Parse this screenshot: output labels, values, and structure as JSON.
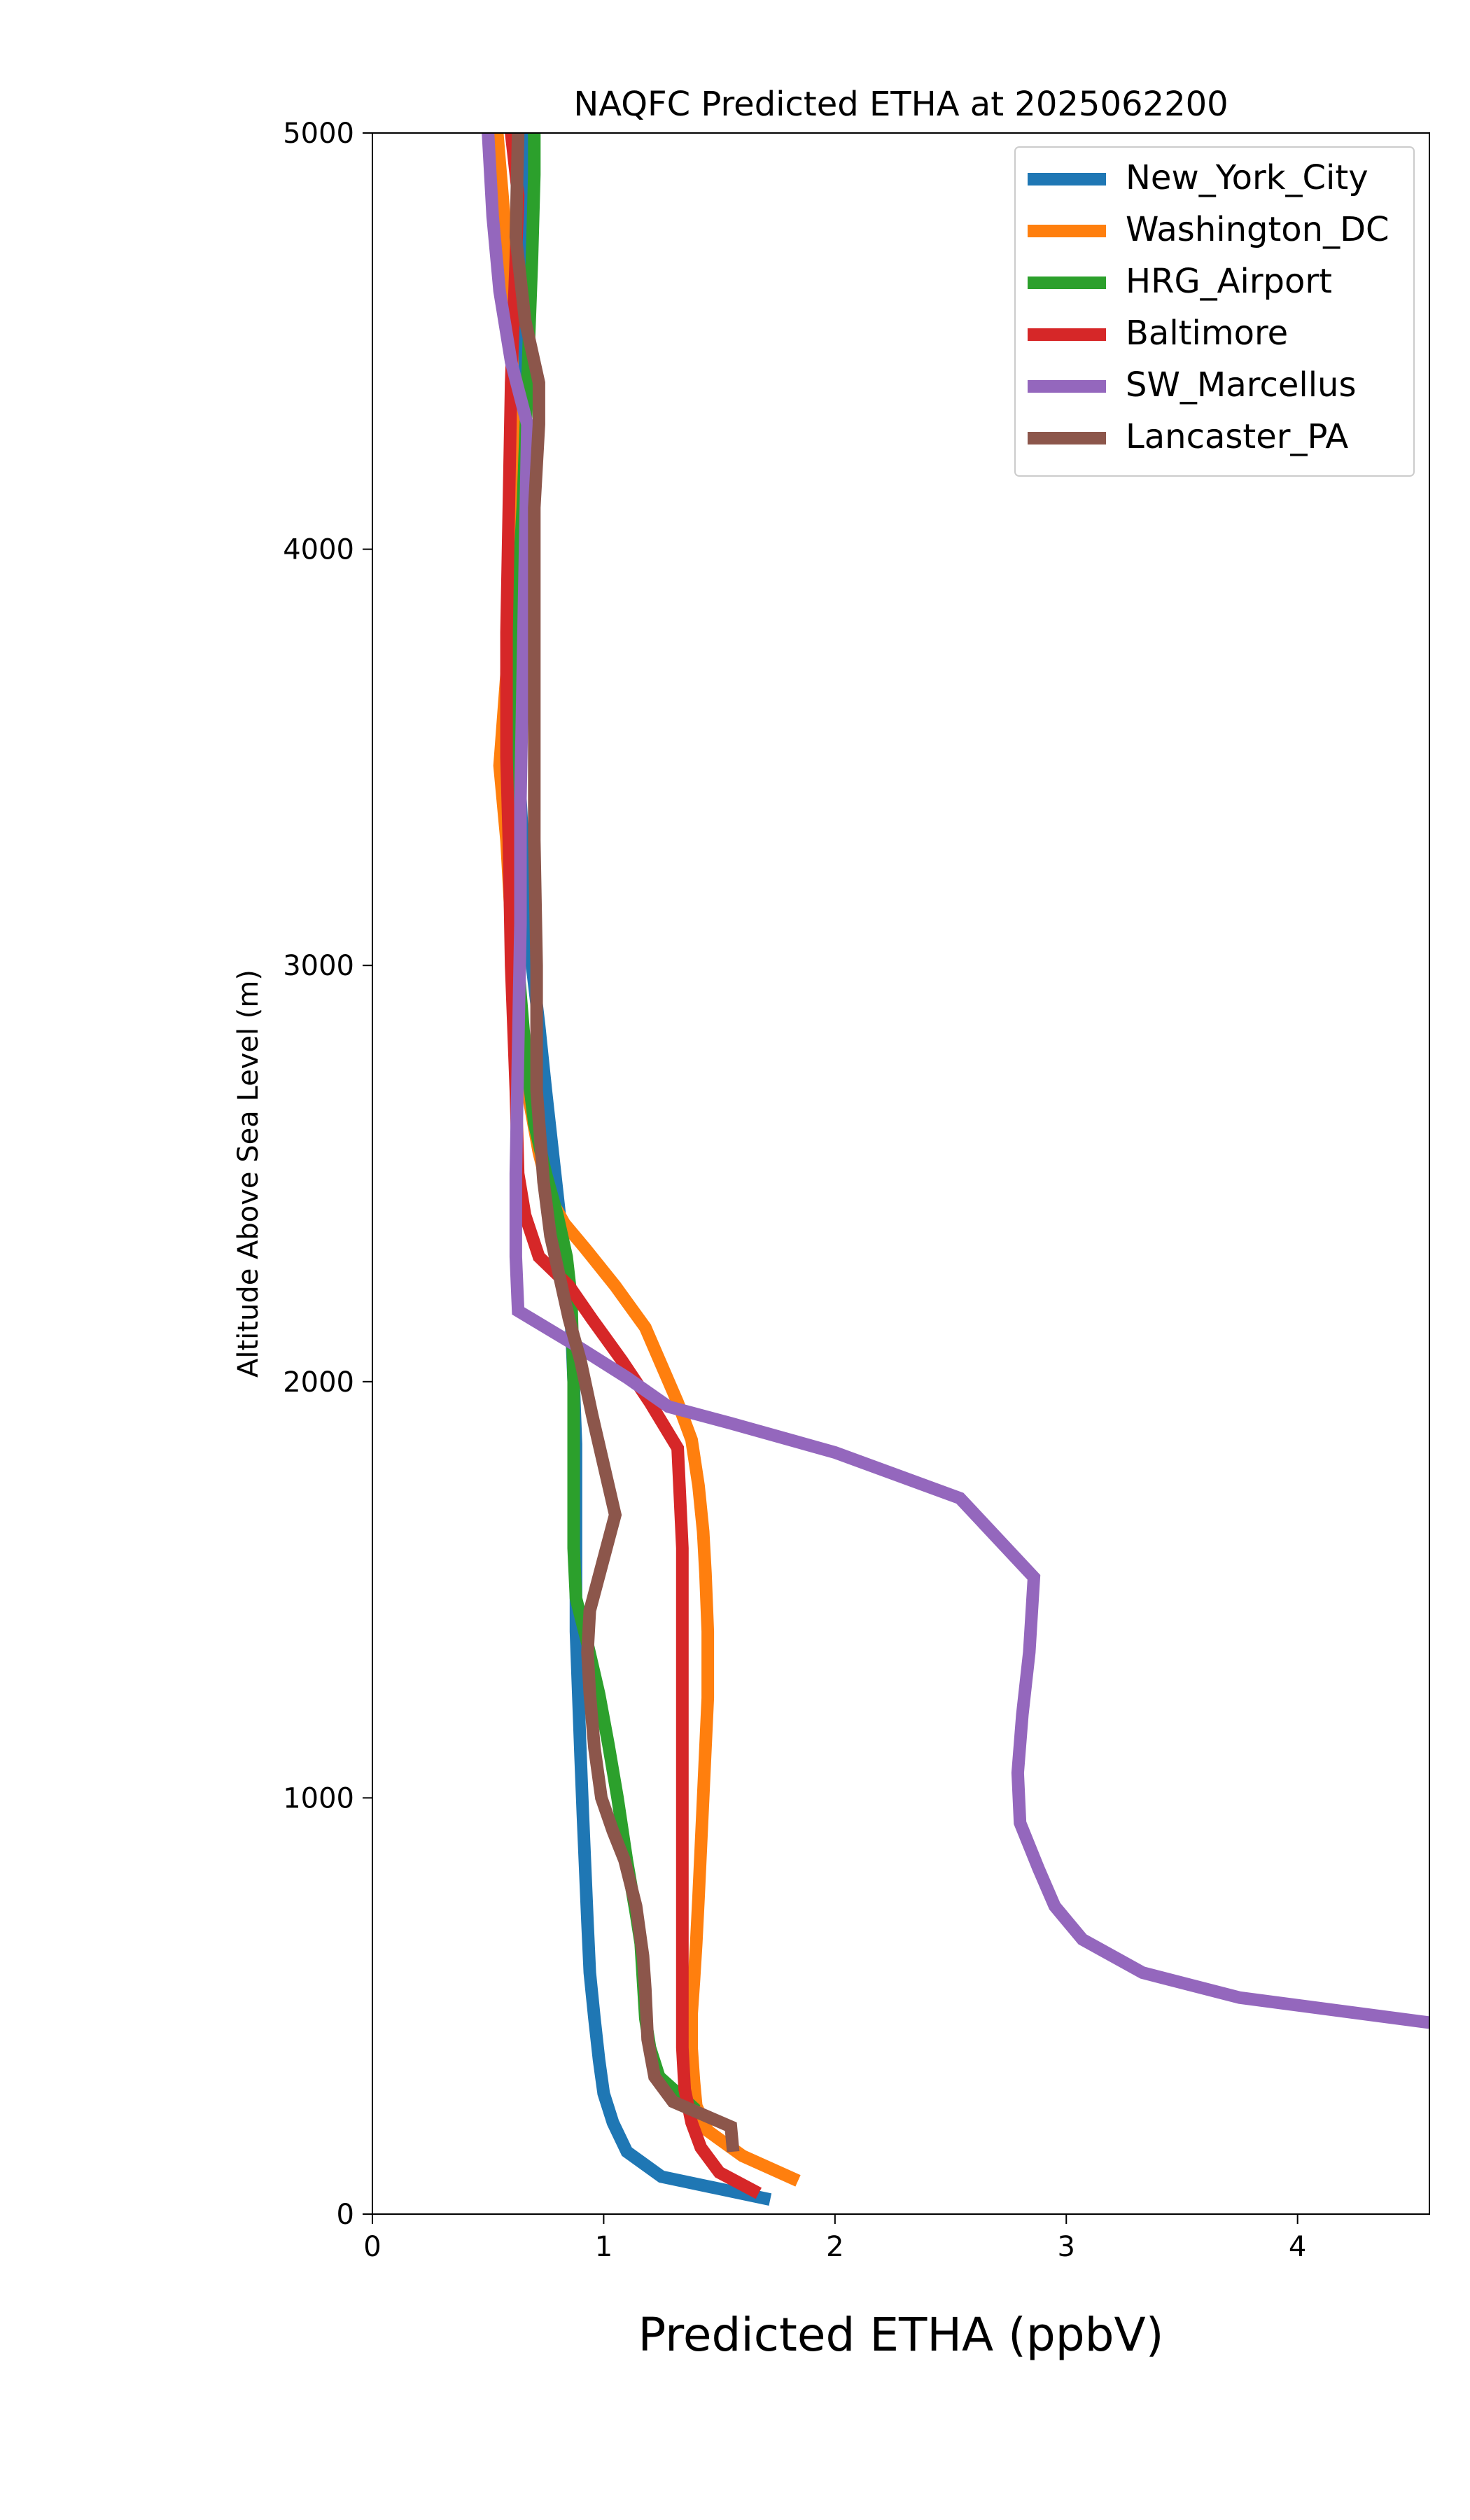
{
  "chart_data": {
    "type": "line",
    "title": "NAQFC Predicted ETHA at 2025062200",
    "xlabel": "Predicted ETHA (ppbV)",
    "ylabel": "Altitude Above Sea Level (m)",
    "xlim": [
      0,
      4.57
    ],
    "ylim": [
      0,
      5000
    ],
    "xticks": [
      0,
      1,
      2,
      3,
      4
    ],
    "yticks": [
      0,
      1000,
      2000,
      3000,
      4000,
      5000
    ],
    "grid": false,
    "legend": "top-right",
    "series": [
      {
        "name": "New_York_City",
        "color": "#1f77b4",
        "points": [
          [
            1.72,
            35
          ],
          [
            1.25,
            90
          ],
          [
            1.1,
            150
          ],
          [
            1.04,
            220
          ],
          [
            1.0,
            290
          ],
          [
            0.98,
            370
          ],
          [
            0.96,
            470
          ],
          [
            0.94,
            580
          ],
          [
            0.93,
            700
          ],
          [
            0.92,
            830
          ],
          [
            0.91,
            960
          ],
          [
            0.9,
            1100
          ],
          [
            0.89,
            1250
          ],
          [
            0.88,
            1400
          ],
          [
            0.88,
            1550
          ],
          [
            0.88,
            1700
          ],
          [
            0.88,
            1850
          ],
          [
            0.87,
            2000
          ],
          [
            0.86,
            2130
          ],
          [
            0.84,
            2260
          ],
          [
            0.81,
            2400
          ],
          [
            0.78,
            2550
          ],
          [
            0.75,
            2700
          ],
          [
            0.72,
            2860
          ],
          [
            0.69,
            3000
          ],
          [
            0.66,
            3200
          ],
          [
            0.64,
            3400
          ],
          [
            0.62,
            3700
          ],
          [
            0.62,
            4000
          ],
          [
            0.63,
            4200
          ],
          [
            0.64,
            4400
          ],
          [
            0.65,
            4600
          ],
          [
            0.66,
            4800
          ],
          [
            0.66,
            5000
          ]
        ]
      },
      {
        "name": "Washington_DC",
        "color": "#ff7f0e",
        "points": [
          [
            1.84,
            80
          ],
          [
            1.6,
            140
          ],
          [
            1.45,
            200
          ],
          [
            1.4,
            260
          ],
          [
            1.39,
            320
          ],
          [
            1.38,
            400
          ],
          [
            1.38,
            480
          ],
          [
            1.39,
            560
          ],
          [
            1.4,
            650
          ],
          [
            1.41,
            760
          ],
          [
            1.42,
            880
          ],
          [
            1.43,
            1000
          ],
          [
            1.44,
            1120
          ],
          [
            1.45,
            1240
          ],
          [
            1.45,
            1400
          ],
          [
            1.44,
            1540
          ],
          [
            1.43,
            1640
          ],
          [
            1.41,
            1750
          ],
          [
            1.38,
            1860
          ],
          [
            1.32,
            1950
          ],
          [
            1.25,
            2040
          ],
          [
            1.18,
            2130
          ],
          [
            1.05,
            2230
          ],
          [
            0.92,
            2320
          ],
          [
            0.83,
            2380
          ],
          [
            0.77,
            2440
          ],
          [
            0.72,
            2550
          ],
          [
            0.67,
            2700
          ],
          [
            0.64,
            2900
          ],
          [
            0.6,
            3100
          ],
          [
            0.58,
            3300
          ],
          [
            0.55,
            3480
          ],
          [
            0.58,
            3700
          ],
          [
            0.6,
            4000
          ],
          [
            0.61,
            4300
          ],
          [
            0.6,
            4600
          ],
          [
            0.57,
            4800
          ],
          [
            0.54,
            5000
          ]
        ]
      },
      {
        "name": "HRG_Airport",
        "color": "#2ca02c",
        "points": [
          [
            1.4,
            250
          ],
          [
            1.24,
            330
          ],
          [
            1.2,
            400
          ],
          [
            1.18,
            470
          ],
          [
            1.17,
            560
          ],
          [
            1.16,
            650
          ],
          [
            1.14,
            720
          ],
          [
            1.1,
            850
          ],
          [
            1.06,
            1000
          ],
          [
            1.02,
            1130
          ],
          [
            0.98,
            1250
          ],
          [
            0.93,
            1370
          ],
          [
            0.88,
            1480
          ],
          [
            0.87,
            1600
          ],
          [
            0.87,
            1750
          ],
          [
            0.87,
            1900
          ],
          [
            0.87,
            2000
          ],
          [
            0.86,
            2200
          ],
          [
            0.84,
            2300
          ],
          [
            0.8,
            2400
          ],
          [
            0.75,
            2500
          ],
          [
            0.7,
            2620
          ],
          [
            0.66,
            2800
          ],
          [
            0.63,
            3000
          ],
          [
            0.62,
            3300
          ],
          [
            0.62,
            3600
          ],
          [
            0.63,
            3900
          ],
          [
            0.65,
            4100
          ],
          [
            0.67,
            4400
          ],
          [
            0.69,
            4700
          ],
          [
            0.7,
            4900
          ],
          [
            0.7,
            5000
          ]
        ]
      },
      {
        "name": "Baltimore",
        "color": "#d62728",
        "points": [
          [
            1.67,
            50
          ],
          [
            1.5,
            100
          ],
          [
            1.42,
            160
          ],
          [
            1.38,
            220
          ],
          [
            1.35,
            300
          ],
          [
            1.34,
            400
          ],
          [
            1.34,
            600
          ],
          [
            1.34,
            800
          ],
          [
            1.34,
            1000
          ],
          [
            1.34,
            1200
          ],
          [
            1.34,
            1400
          ],
          [
            1.34,
            1600
          ],
          [
            1.32,
            1840
          ],
          [
            1.2,
            1950
          ],
          [
            1.08,
            2050
          ],
          [
            0.95,
            2150
          ],
          [
            0.85,
            2230
          ],
          [
            0.72,
            2300
          ],
          [
            0.66,
            2400
          ],
          [
            0.63,
            2500
          ],
          [
            0.62,
            2700
          ],
          [
            0.6,
            3000
          ],
          [
            0.59,
            3300
          ],
          [
            0.58,
            3500
          ],
          [
            0.58,
            3800
          ],
          [
            0.59,
            4100
          ],
          [
            0.6,
            4400
          ],
          [
            0.62,
            4700
          ],
          [
            0.63,
            4850
          ],
          [
            0.6,
            5000
          ]
        ]
      },
      {
        "name": "SW_Marcellus",
        "color": "#9467bd",
        "points": [
          [
            4.57,
            460
          ],
          [
            3.75,
            520
          ],
          [
            3.33,
            580
          ],
          [
            3.07,
            660
          ],
          [
            2.95,
            740
          ],
          [
            2.88,
            830
          ],
          [
            2.8,
            940
          ],
          [
            2.79,
            1060
          ],
          [
            2.81,
            1200
          ],
          [
            2.84,
            1350
          ],
          [
            2.86,
            1530
          ],
          [
            2.54,
            1720
          ],
          [
            2.0,
            1830
          ],
          [
            1.55,
            1900
          ],
          [
            1.28,
            1940
          ],
          [
            1.1,
            2010
          ],
          [
            0.9,
            2080
          ],
          [
            0.63,
            2170
          ],
          [
            0.62,
            2300
          ],
          [
            0.62,
            2500
          ],
          [
            0.63,
            2800
          ],
          [
            0.64,
            3100
          ],
          [
            0.64,
            3400
          ],
          [
            0.65,
            3700
          ],
          [
            0.66,
            4000
          ],
          [
            0.67,
            4300
          ],
          [
            0.6,
            4450
          ],
          [
            0.55,
            4620
          ],
          [
            0.52,
            4800
          ],
          [
            0.5,
            5000
          ]
        ]
      },
      {
        "name": "Lancaster_PA",
        "color": "#8c564b",
        "points": [
          [
            1.56,
            150
          ],
          [
            1.55,
            210
          ],
          [
            1.3,
            270
          ],
          [
            1.22,
            330
          ],
          [
            1.19,
            420
          ],
          [
            1.18,
            540
          ],
          [
            1.17,
            620
          ],
          [
            1.14,
            740
          ],
          [
            1.09,
            850
          ],
          [
            1.04,
            920
          ],
          [
            0.99,
            1000
          ],
          [
            0.96,
            1120
          ],
          [
            0.94,
            1250
          ],
          [
            0.93,
            1350
          ],
          [
            0.94,
            1450
          ],
          [
            1.05,
            1680
          ],
          [
            1.0,
            1800
          ],
          [
            0.95,
            1920
          ],
          [
            0.9,
            2050
          ],
          [
            0.85,
            2150
          ],
          [
            0.81,
            2250
          ],
          [
            0.77,
            2350
          ],
          [
            0.74,
            2480
          ],
          [
            0.71,
            2700
          ],
          [
            0.71,
            3000
          ],
          [
            0.7,
            3300
          ],
          [
            0.7,
            3600
          ],
          [
            0.7,
            3900
          ],
          [
            0.7,
            4100
          ],
          [
            0.72,
            4300
          ],
          [
            0.72,
            4400
          ],
          [
            0.66,
            4550
          ],
          [
            0.62,
            4750
          ],
          [
            0.63,
            5000
          ]
        ]
      }
    ]
  }
}
